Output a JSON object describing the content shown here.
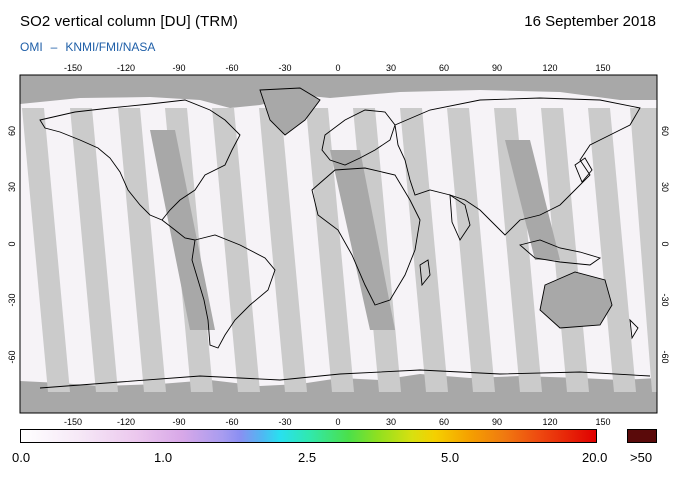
{
  "header": {
    "title": "SO2 vertical column [DU] (TRM)",
    "date": "16 September 2018",
    "credit_left": "OMI",
    "credit_sep": "–",
    "credit_right": "KNMI/FMI/NASA"
  },
  "map": {
    "lon_ticks": [
      "-150",
      "-120",
      "-90",
      "-60",
      "-30",
      "0",
      "30",
      "60",
      "90",
      "120",
      "150"
    ],
    "lat_ticks": [
      "60",
      "30",
      "0",
      "-30",
      "-60"
    ],
    "colors": {
      "ocean": "#f6f3f7",
      "swath_gap": "#c8c8c8",
      "dark_swath": "#a8a8a8",
      "coast": "#000000"
    }
  },
  "colorbar": {
    "labels": [
      "0.0",
      "1.0",
      "2.5",
      "5.0",
      "20.0"
    ],
    "max_label": ">50",
    "max_color": "#5a0a0a"
  }
}
